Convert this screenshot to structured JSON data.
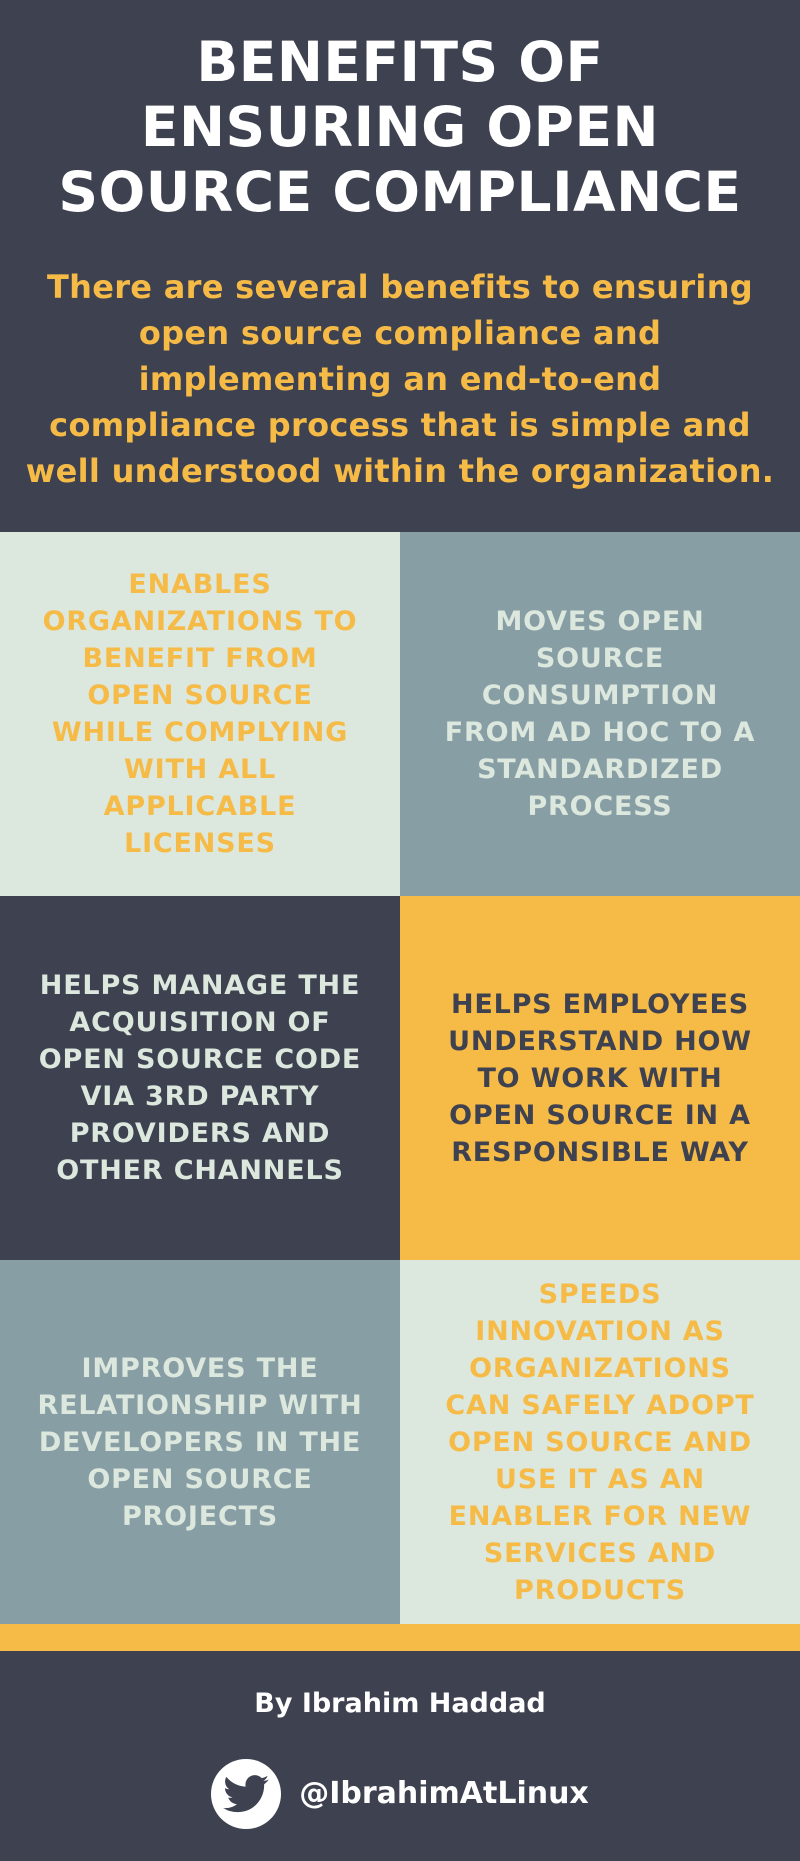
{
  "header": {
    "title": "BENEFITS OF ENSURING OPEN SOURCE COMPLIANCE",
    "intro": "There are several benefits to ensuring\nopen source compliance and\nimplementing  an end-to-end\ncompliance process that is simple and\nwell understood within the organization."
  },
  "benefits": [
    {
      "text": "ENABLES ORGANIZATIONS TO BENEFIT FROM OPEN SOURCE WHILE COMPLYING WITH ALL APPLICABLE LICENSES"
    },
    {
      "text": "MOVES OPEN SOURCE CONSUMPTION FROM AD HOC TO A STANDARDIZED PROCESS"
    },
    {
      "text": "HELPS MANAGE THE ACQUISITION OF OPEN SOURCE CODE VIA 3RD PARTY PROVIDERS AND OTHER CHANNELS"
    },
    {
      "text": "HELPS EMPLOYEES UNDERSTAND HOW TO WORK WITH OPEN SOURCE IN A RESPONSIBLE WAY"
    },
    {
      "text": "IMPROVES THE RELATIONSHIP WITH DEVELOPERS IN THE OPEN SOURCE PROJECTS"
    },
    {
      "text": "SPEEDS INNOVATION AS ORGANIZATIONS CAN SAFELY ADOPT OPEN SOURCE AND USE IT AS AN ENABLER FOR NEW SERVICES AND PRODUCTS"
    }
  ],
  "footer": {
    "author": "By Ibrahim Haddad",
    "twitter_handle": "@IbrahimAtLinux",
    "icon": "twitter-bird-icon"
  },
  "colors": {
    "dark": "#3e414f",
    "accent": "#f6bb47",
    "light": "#dce7dd",
    "slate": "#889ea5"
  }
}
